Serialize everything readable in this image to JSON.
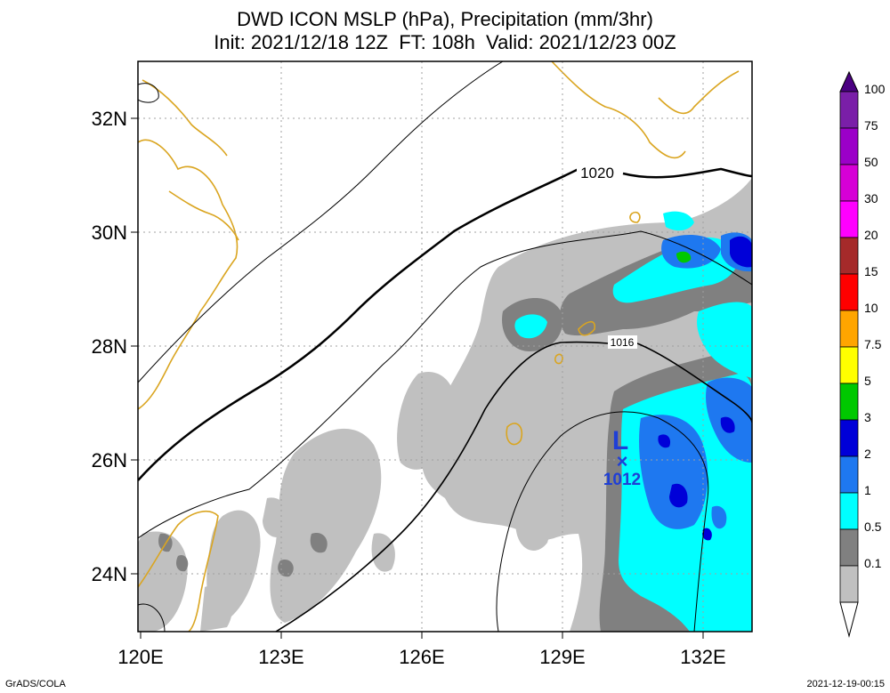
{
  "title": {
    "line1": "DWD ICON MSLP (hPa), Precipitation (mm/3hr)",
    "line2": "Init: 2021/12/18 12Z  FT: 108h  Valid: 2021/12/23 00Z"
  },
  "axes": {
    "lat_ticks": [
      "24N",
      "26N",
      "28N",
      "30N",
      "32N"
    ],
    "lon_ticks": [
      "120E",
      "123E",
      "126E",
      "129E",
      "132E"
    ]
  },
  "contours": {
    "labels": [
      "1020",
      "1016"
    ]
  },
  "low_center": {
    "symbol": "L",
    "marker": "×",
    "pressure": "1012"
  },
  "colorbar": {
    "labels": [
      "100",
      "75",
      "50",
      "30",
      "20",
      "15",
      "10",
      "7.5",
      "5",
      "3",
      "2",
      "1",
      "0.5",
      "0.1"
    ],
    "colors": [
      "#7a1fa8",
      "#9b00c8",
      "#d600d6",
      "#ff00ff",
      "#a52a2a",
      "#ff0000",
      "#ffa500",
      "#ffff00",
      "#00c800",
      "#0000d8",
      "#1e78f0",
      "#00ffff",
      "#808080",
      "#c0c0c0",
      "#ffffff"
    ]
  },
  "footer": {
    "left": "GrADS/COLA",
    "right": "2021-12-19-00:15"
  }
}
